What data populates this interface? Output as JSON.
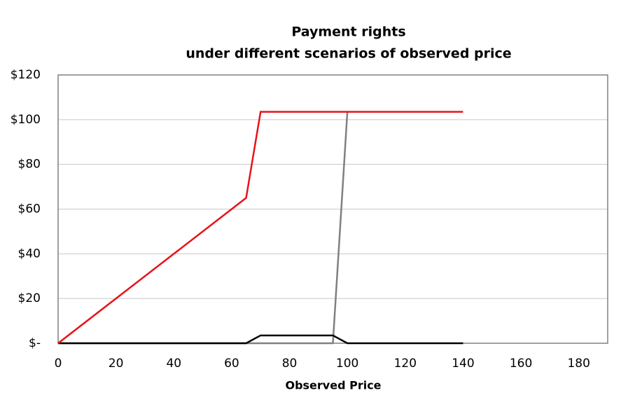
{
  "chart_data": {
    "type": "line",
    "title": "Payment rights",
    "subtitle": "under different scenarios of observed price",
    "x_label": "Observed Price",
    "xlim": [
      0,
      190
    ],
    "xticks": [
      0,
      20,
      40,
      60,
      80,
      100,
      120,
      140,
      160,
      180
    ],
    "ylim": [
      0,
      120
    ],
    "yticks": [
      {
        "value": 0,
        "label": "$-"
      },
      {
        "value": 20,
        "label": "$20"
      },
      {
        "value": 40,
        "label": "$40"
      },
      {
        "value": 60,
        "label": "$60"
      },
      {
        "value": 80,
        "label": "$80"
      },
      {
        "value": 100,
        "label": "$100"
      },
      {
        "value": 120,
        "label": "$120"
      }
    ],
    "grid": true,
    "series": [
      {
        "color": "#808080",
        "x": [
          0,
          95,
          100
        ],
        "values": [
          0,
          0,
          103.5
        ]
      },
      {
        "color": "#000000",
        "x": [
          0,
          65,
          70,
          95,
          100,
          140
        ],
        "values": [
          0,
          0,
          3.5,
          3.5,
          0,
          0
        ]
      },
      {
        "color": "#e8131a",
        "x": [
          0,
          65,
          70,
          140
        ],
        "values": [
          0,
          65,
          103.5,
          103.5
        ]
      }
    ]
  }
}
